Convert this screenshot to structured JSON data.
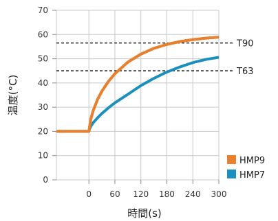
{
  "chart_data": {
    "type": "line",
    "xlabel": "時間(s)",
    "ylabel": "温度(°C)",
    "xlim": [
      -75,
      300
    ],
    "ylim": [
      0,
      70
    ],
    "x_ticks": [
      0,
      60,
      120,
      180,
      240,
      300
    ],
    "y_ticks": [
      0,
      10,
      20,
      30,
      40,
      50,
      60,
      70
    ],
    "grid": true,
    "legend_position": "bottom-right",
    "reference_lines": [
      {
        "label": "T90",
        "y": 56.5,
        "style": "dashed"
      },
      {
        "label": "T63",
        "y": 45,
        "style": "dashed"
      }
    ],
    "series": [
      {
        "name": "HMP9",
        "color": "#e8812f",
        "x": [
          -75,
          0,
          2,
          5,
          10,
          20,
          30,
          45,
          60,
          90,
          120,
          150,
          180,
          210,
          240,
          270,
          300
        ],
        "values": [
          20,
          20,
          22.4,
          25.5,
          28.6,
          33.2,
          36.6,
          40.6,
          43.8,
          48.6,
          51.9,
          54.3,
          55.9,
          57.1,
          57.9,
          58.5,
          58.9
        ]
      },
      {
        "name": "HMP7",
        "color": "#1b8fbd",
        "x": [
          -75,
          0,
          2,
          5,
          10,
          20,
          30,
          45,
          60,
          90,
          120,
          150,
          180,
          210,
          240,
          270,
          300
        ],
        "values": [
          20,
          20,
          21.2,
          22.3,
          23.6,
          25.6,
          27.4,
          29.7,
          31.8,
          35.3,
          38.9,
          41.9,
          44.5,
          46.6,
          48.4,
          49.7,
          50.6
        ]
      }
    ]
  }
}
